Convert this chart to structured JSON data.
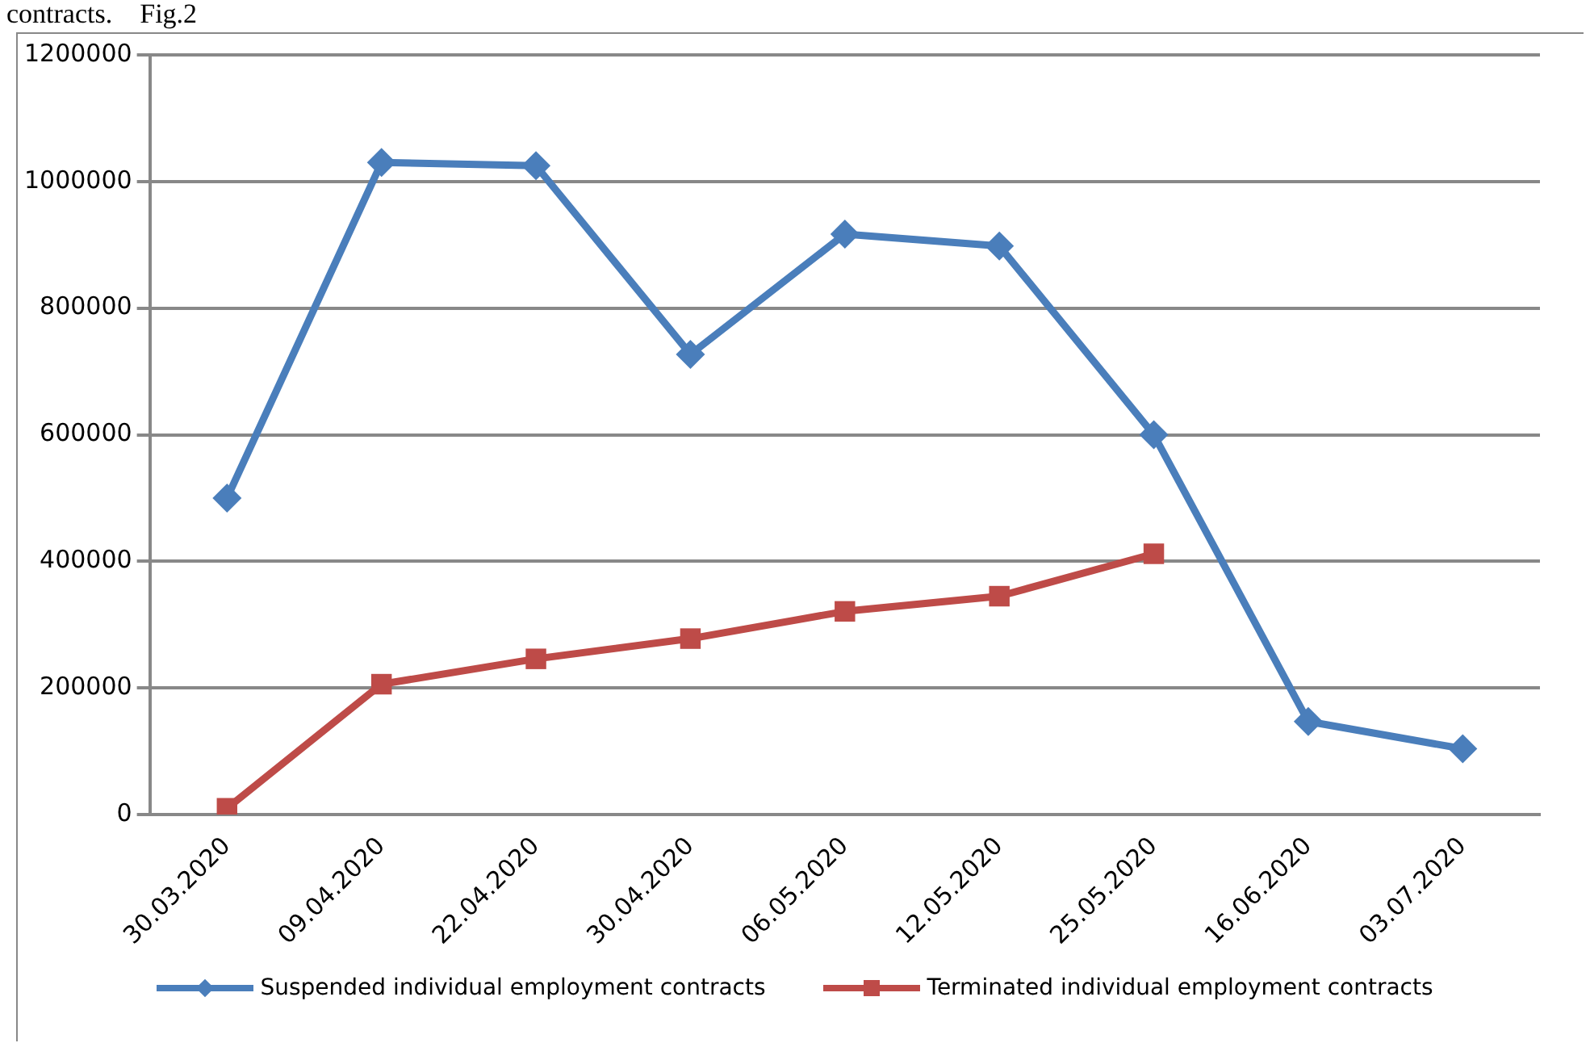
{
  "chart_data": {
    "type": "line",
    "annotations": [
      "contracts.    Fig.2"
    ],
    "categories": [
      "30.03.2020",
      "09.04.2020",
      "22.04.2020",
      "30.04.2020",
      "06.05.2020",
      "12.05.2020",
      "25.05.2020",
      "16.06.2020",
      "03.07.2020"
    ],
    "series": [
      {
        "name": "Suspended individual employment contracts",
        "color": "#4a7ebb",
        "marker": "diamond",
        "values": [
          500000,
          1030000,
          1025000,
          727000,
          917000,
          898000,
          600000,
          147000,
          104000
        ]
      },
      {
        "name": "Terminated individual employment contracts",
        "color": "#be4b48",
        "marker": "square",
        "values": [
          10000,
          206000,
          246000,
          278000,
          321000,
          345000,
          412000,
          null,
          null
        ]
      }
    ],
    "ylim": [
      0,
      1200000
    ],
    "yticks": [
      0,
      200000,
      400000,
      600000,
      800000,
      1000000,
      1200000
    ],
    "grid": "y",
    "legend": "bottom",
    "line_style": "solid"
  }
}
